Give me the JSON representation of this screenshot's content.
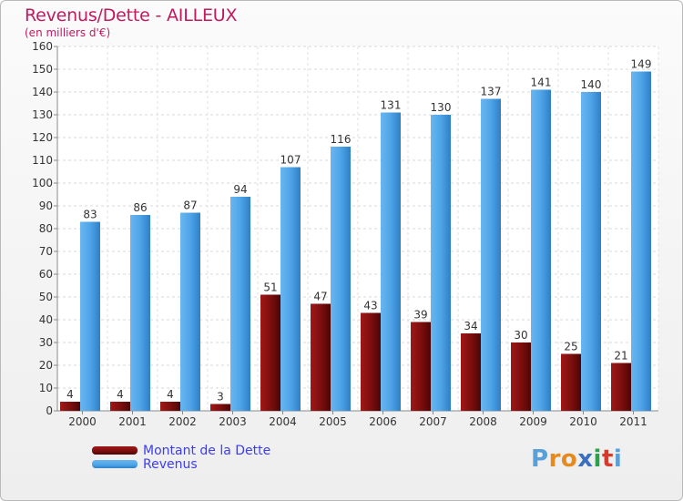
{
  "header": {
    "title": "Revenus/Dette - AILLEUX",
    "subtitle": "(en milliers d'€)"
  },
  "chart_data": {
    "type": "bar",
    "title": "Revenus/Dette - AILLEUX",
    "ylabel": "(en milliers d'€)",
    "xlabel": "",
    "ylim": [
      0,
      160
    ],
    "yticks": [
      0,
      10,
      20,
      30,
      40,
      50,
      60,
      70,
      80,
      90,
      100,
      110,
      120,
      130,
      140,
      150,
      160
    ],
    "grid": true,
    "categories": [
      "2000",
      "2001",
      "2002",
      "2003",
      "2004",
      "2005",
      "2006",
      "2007",
      "2008",
      "2009",
      "2010",
      "2011"
    ],
    "series": [
      {
        "name": "Montant de la Dette",
        "color": "#7a0d0d",
        "values": [
          4,
          4,
          4,
          3,
          51,
          47,
          43,
          39,
          34,
          30,
          25,
          21
        ]
      },
      {
        "name": "Revenus",
        "color": "#4ea4e8",
        "values": [
          83,
          86,
          87,
          94,
          107,
          116,
          131,
          130,
          137,
          141,
          140,
          149
        ]
      }
    ],
    "legend": "bottom-left"
  },
  "legend": {
    "debt_label": "Montant de la Dette",
    "revenue_label": "Revenus"
  },
  "logo": {
    "text": "Proxiti",
    "letters": [
      "P",
      "r",
      "o",
      "x",
      "i",
      "t",
      "i"
    ],
    "letter_colors": [
      "#5aa0d8",
      "#e58a1d",
      "#e58a1d",
      "#3a6fc0",
      "#2e9f4a",
      "#d63a2a",
      "#5aa0d8"
    ]
  }
}
